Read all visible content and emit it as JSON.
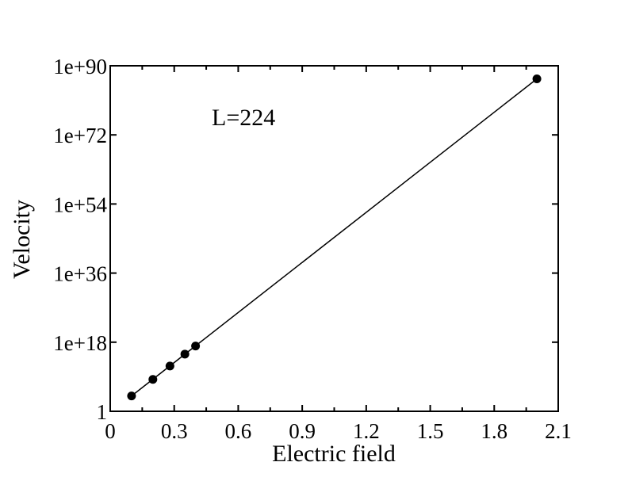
{
  "chart_data": {
    "type": "scatter",
    "title": "",
    "xlabel": "Electric field",
    "ylabel": "Velocity",
    "annotation": "L=224",
    "xlim": [
      0,
      2.1
    ],
    "ylim_log10": [
      0,
      90
    ],
    "y_scale": "log",
    "x_ticks": [
      "0",
      "0.3",
      "0.6",
      "0.9",
      "1.2",
      "1.5",
      "1.8",
      "2.1"
    ],
    "x_tick_values": [
      0,
      0.3,
      0.6,
      0.9,
      1.2,
      1.5,
      1.8,
      2.1
    ],
    "y_ticks": [
      "1",
      "1e+18",
      "1e+36",
      "1e+54",
      "1e+72",
      "1e+90"
    ],
    "y_tick_values_log10": [
      0,
      18,
      36,
      54,
      72,
      90
    ],
    "grid": false,
    "points": [
      {
        "x": 0.1,
        "y_log10": 4
      },
      {
        "x": 0.2,
        "y_log10": 8.3
      },
      {
        "x": 0.28,
        "y_log10": 11.8
      },
      {
        "x": 0.35,
        "y_log10": 14.9
      },
      {
        "x": 0.4,
        "y_log10": 17
      },
      {
        "x": 2.0,
        "y_log10": 86.6
      }
    ],
    "fit_line": [
      {
        "x": 0.1,
        "y_log10": 4
      },
      {
        "x": 2.0,
        "y_log10": 86.6
      }
    ],
    "colors": {
      "marker": "#000000",
      "line": "#000000",
      "axes": "#000000"
    }
  }
}
